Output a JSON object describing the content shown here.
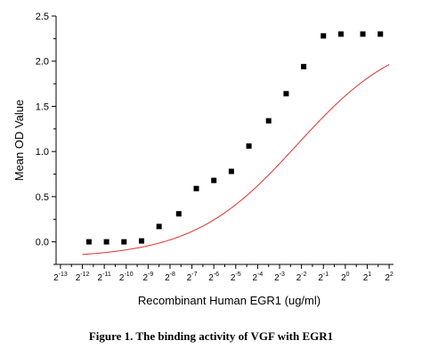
{
  "caption": "Figure 1. The binding activity of VGF with EGR1",
  "chart_data": {
    "type": "scatter",
    "title": "",
    "xlabel": "Recombinant Human EGR1 (ug/ml)",
    "ylabel": "Mean OD Value",
    "x_scale": "log2",
    "xlim_exponent": [
      -13.2,
      2.2
    ],
    "ylim": [
      -0.25,
      2.5
    ],
    "x_ticks": [
      {
        "base": "2",
        "exp": "-13"
      },
      {
        "base": "2",
        "exp": "-12"
      },
      {
        "base": "2",
        "exp": "-11"
      },
      {
        "base": "2",
        "exp": "-10"
      },
      {
        "base": "2",
        "exp": "-9"
      },
      {
        "base": "2",
        "exp": "-8"
      },
      {
        "base": "2",
        "exp": "-7"
      },
      {
        "base": "2",
        "exp": "-6"
      },
      {
        "base": "2",
        "exp": "-5"
      },
      {
        "base": "2",
        "exp": "-4"
      },
      {
        "base": "2",
        "exp": "-3"
      },
      {
        "base": "2",
        "exp": "-2"
      },
      {
        "base": "2",
        "exp": "-1"
      },
      {
        "base": "2",
        "exp": "0"
      },
      {
        "base": "2",
        "exp": "1"
      },
      {
        "base": "2",
        "exp": "2"
      }
    ],
    "y_ticks": [
      "0.0",
      "0.5",
      "1.0",
      "1.5",
      "2.0",
      "2.5"
    ],
    "grid": false,
    "marker_color": "#000000",
    "fit_color": "#e03030",
    "points_log2_x": [
      -11.7,
      -10.9,
      -10.1,
      -9.3,
      -8.5,
      -7.6,
      -6.8,
      -6.0,
      -5.2,
      -4.4,
      -3.5,
      -2.7,
      -1.9,
      -1.0,
      -0.2,
      0.8,
      1.6
    ],
    "points_y": [
      0.0,
      0.0,
      0.0,
      0.01,
      0.17,
      0.31,
      0.59,
      0.68,
      0.78,
      1.06,
      1.34,
      1.64,
      1.94,
      2.28,
      2.3,
      2.3,
      2.3
    ],
    "fit_curve": {
      "type": "logistic",
      "bottom": -0.18,
      "top": 2.33,
      "ec50_log2": -2.2,
      "slope": 0.42
    }
  }
}
